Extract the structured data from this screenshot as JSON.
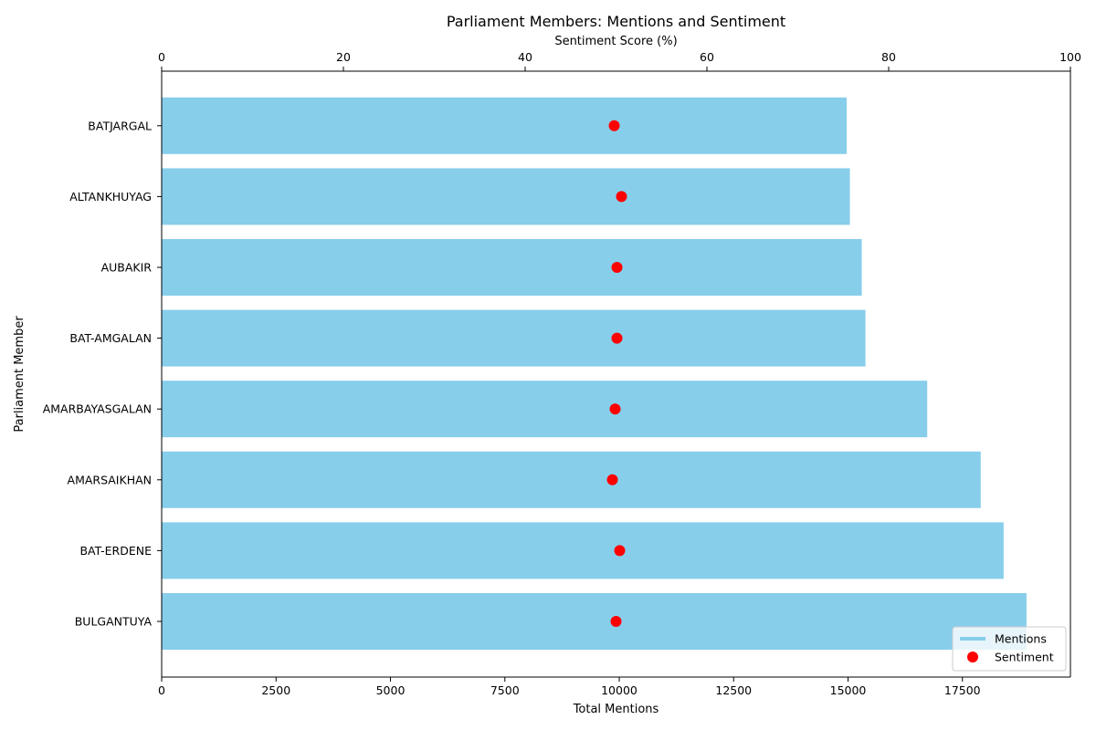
{
  "chart_data": {
    "type": "bar",
    "orientation": "horizontal",
    "title": "Parliament Members: Mentions and Sentiment",
    "xlabel": "Total Mentions",
    "ylabel": "Parliament Member",
    "x2label": "Sentiment Score (%)",
    "xlim": [
      0,
      19860
    ],
    "x2lim": [
      0,
      100
    ],
    "xticks": [
      "0",
      "2500",
      "5000",
      "7500",
      "10000",
      "12500",
      "15000",
      "17500"
    ],
    "xtick_values": [
      0,
      2500,
      5000,
      7500,
      10000,
      12500,
      15000,
      17500
    ],
    "x2ticks": [
      "0",
      "20",
      "40",
      "60",
      "80",
      "100"
    ],
    "x2tick_values": [
      0,
      20,
      40,
      60,
      80,
      100
    ],
    "categories": [
      "BULGANTUYA",
      "BAT-ERDENE",
      "AMARSAIKHAN",
      "AMARBAYASGALAN",
      "BAT-AMGALAN",
      "AUBAKIR",
      "ALTANKHUYAG",
      "BATJARGAL"
    ],
    "series": [
      {
        "name": "Mentions",
        "kind": "bar",
        "color": "#87ceeb",
        "values": [
          18900,
          18400,
          17900,
          16730,
          15380,
          15300,
          15040,
          14970
        ]
      },
      {
        "name": "Sentiment",
        "kind": "point",
        "color": "#ff0000",
        "values": [
          50.0,
          50.4,
          49.6,
          49.9,
          50.1,
          50.1,
          50.6,
          49.8
        ]
      }
    ],
    "legend_position": "bottom-right",
    "grid": false
  }
}
